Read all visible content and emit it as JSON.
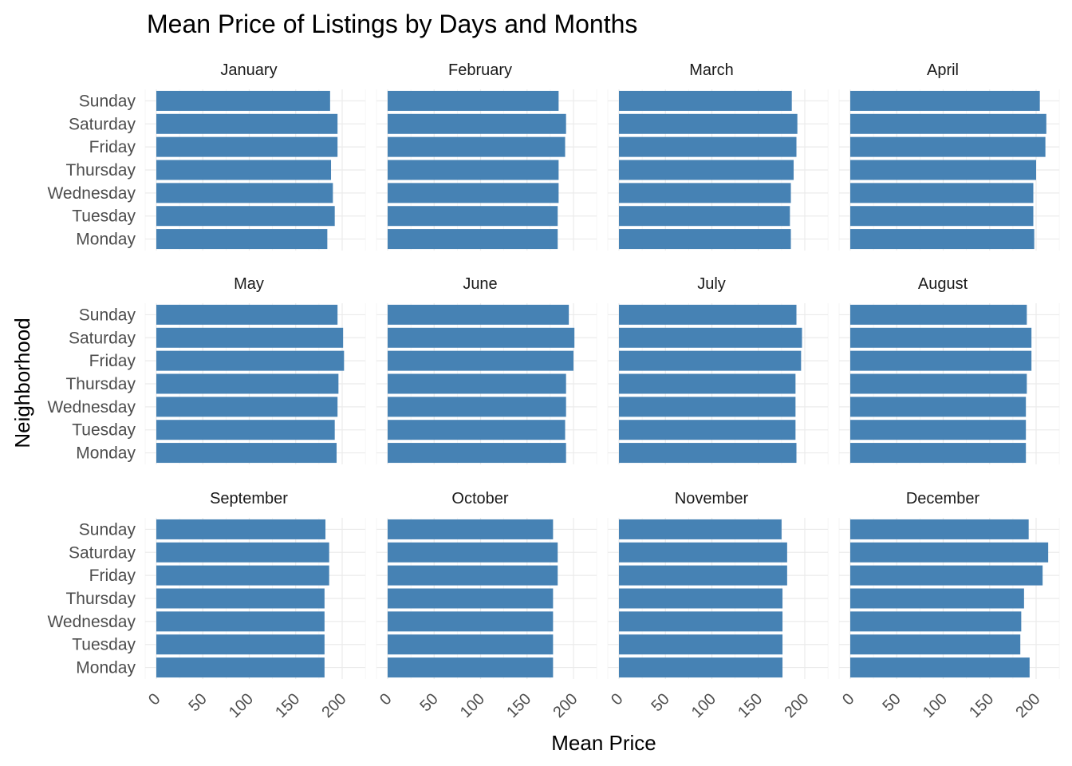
{
  "chart_data": {
    "type": "bar",
    "orientation": "horizontal",
    "faceted": true,
    "title": "Mean Price of Listings by Days and Months",
    "xlabel": "Mean Price",
    "ylabel": "Neighborhood",
    "xlim": [
      0,
      225
    ],
    "x_ticks": [
      "0",
      "50",
      "100",
      "150",
      "200"
    ],
    "grid": true,
    "bar_color": "#4682B4",
    "categories": [
      "Sunday",
      "Saturday",
      "Friday",
      "Thursday",
      "Wednesday",
      "Tuesday",
      "Monday"
    ],
    "facets": [
      {
        "name": "January",
        "values": [
          187,
          195,
          195,
          188,
          190,
          192,
          184
        ]
      },
      {
        "name": "February",
        "values": [
          184,
          192,
          191,
          184,
          184,
          183,
          183
        ]
      },
      {
        "name": "March",
        "values": [
          186,
          192,
          191,
          188,
          185,
          184,
          185
        ]
      },
      {
        "name": "April",
        "values": [
          204,
          211,
          210,
          200,
          197,
          197,
          198
        ]
      },
      {
        "name": "May",
        "values": [
          195,
          201,
          202,
          196,
          195,
          192,
          194
        ]
      },
      {
        "name": "June",
        "values": [
          195,
          201,
          200,
          192,
          192,
          191,
          192
        ]
      },
      {
        "name": "July",
        "values": [
          191,
          197,
          196,
          190,
          190,
          190,
          191
        ]
      },
      {
        "name": "August",
        "values": [
          190,
          195,
          195,
          190,
          189,
          189,
          189
        ]
      },
      {
        "name": "September",
        "values": [
          182,
          186,
          186,
          181,
          181,
          181,
          181
        ]
      },
      {
        "name": "October",
        "values": [
          178,
          183,
          183,
          178,
          178,
          178,
          178
        ]
      },
      {
        "name": "November",
        "values": [
          175,
          181,
          181,
          176,
          176,
          176,
          176
        ]
      },
      {
        "name": "December",
        "values": [
          192,
          213,
          207,
          187,
          184,
          183,
          193
        ]
      }
    ]
  }
}
